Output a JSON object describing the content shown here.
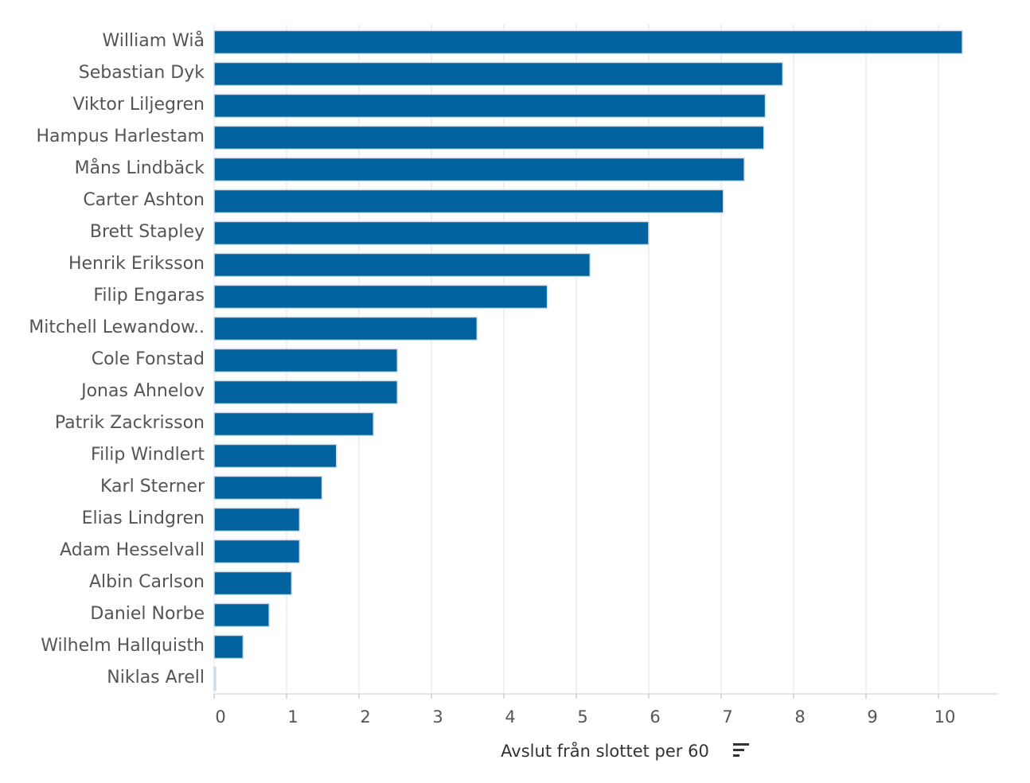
{
  "chart_data": {
    "type": "bar",
    "orientation": "horizontal",
    "title": "",
    "xlabel": "Avslut från slottet per 60",
    "ylabel": "",
    "categories": [
      "William Wiå",
      "Sebastian Dyk",
      "Viktor Liljegren",
      "Hampus Harlestam",
      "Måns Lindbäck",
      "Carter Ashton",
      "Brett Stapley",
      "Henrik Eriksson",
      "Filip Engaras",
      "Mitchell Lewandow..",
      "Cole Fonstad",
      "Jonas Ahnelov",
      "Patrik Zackrisson",
      "Filip Windlert",
      "Karl Sterner",
      "Elias Lindgren",
      "Adam Hesselvall",
      "Albin Carlson",
      "Daniel Norbe",
      "Wilhelm Hallquisth",
      "Niklas Arell"
    ],
    "values": [
      10.33,
      7.85,
      7.61,
      7.59,
      7.32,
      7.03,
      6.0,
      5.19,
      4.6,
      3.63,
      2.53,
      2.53,
      2.2,
      1.69,
      1.49,
      1.18,
      1.18,
      1.07,
      0.76,
      0.4,
      0.0
    ],
    "xlim": [
      0,
      10.8
    ],
    "xticks": [
      0,
      1,
      2,
      3,
      4,
      5,
      6,
      7,
      8,
      9,
      10
    ],
    "grid": true,
    "bar_color": "#0063a0",
    "sort_icon": "sort-descending-icon"
  }
}
